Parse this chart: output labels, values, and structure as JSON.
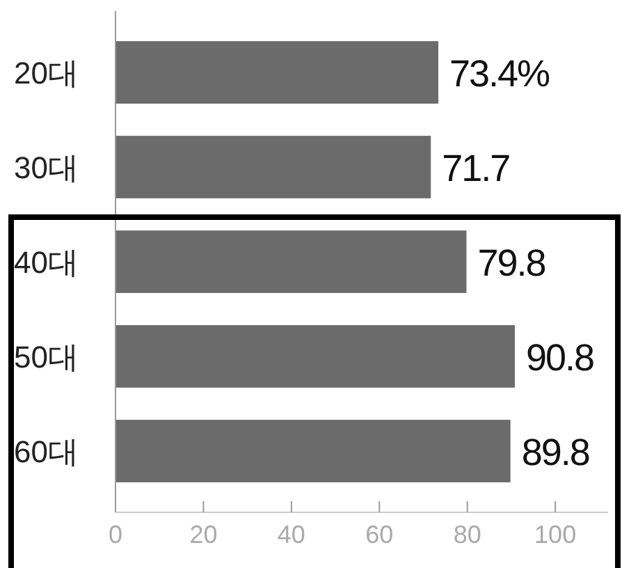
{
  "chart_data": {
    "type": "bar",
    "orientation": "horizontal",
    "categories": [
      "20대",
      "30대",
      "40대",
      "50대",
      "60대"
    ],
    "values": [
      73.4,
      71.7,
      79.8,
      90.8,
      89.8
    ],
    "value_labels": [
      "73.4%",
      "71.7",
      "79.8",
      "90.8",
      "89.8"
    ],
    "color": "#6b6b6b",
    "xlim": [
      0,
      112
    ],
    "xticks": [
      0,
      20,
      40,
      60,
      80,
      100
    ]
  }
}
